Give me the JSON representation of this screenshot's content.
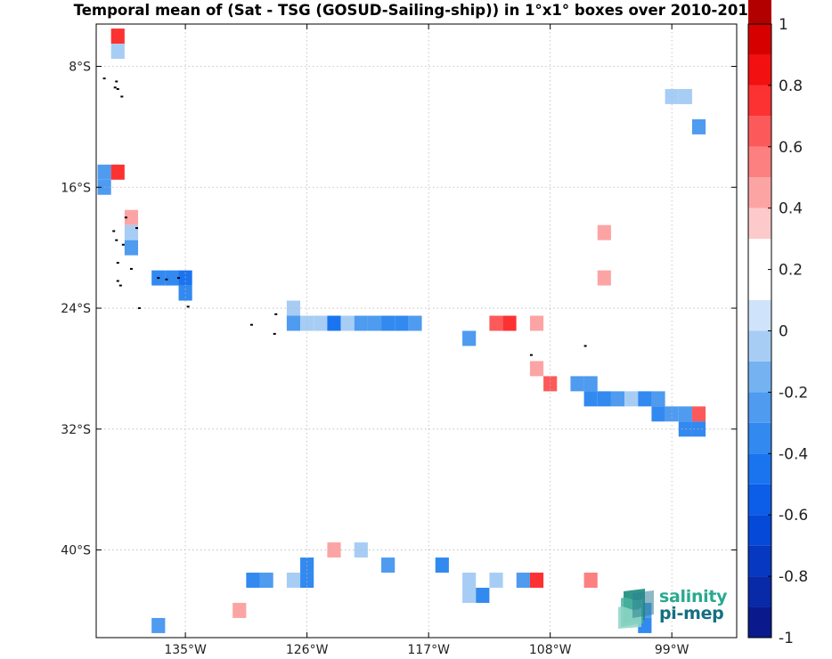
{
  "title": "Temporal mean of (Sat - TSG (GOSUD-Sailing-ship)) in 1°x1° boxes over 2010-2017",
  "logo": {
    "line1": "salinity",
    "line2": "pi-mep"
  },
  "colors": {
    "grid": "#b8b8b8",
    "land": "#000000",
    "axis": "#000000",
    "background": "#ffffff"
  },
  "map_data": {
    "type": "gridded_cell_map",
    "lon_range": [
      -141.6,
      -94.2
    ],
    "lat_range": [
      -45.8,
      -5.2
    ],
    "grid": true,
    "cell_size_deg": 1,
    "x_ticks": [
      {
        "value": -135,
        "label": "135°W"
      },
      {
        "value": -126,
        "label": "126°W"
      },
      {
        "value": -117,
        "label": "117°W"
      },
      {
        "value": -108,
        "label": "108°W"
      },
      {
        "value": -99,
        "label": "99°W"
      }
    ],
    "y_ticks": [
      {
        "value": -8,
        "label": "8°S"
      },
      {
        "value": -16,
        "label": "16°S"
      },
      {
        "value": -24,
        "label": "24°S"
      },
      {
        "value": -32,
        "label": "32°S"
      },
      {
        "value": -40,
        "label": "40°S"
      }
    ],
    "colorbar": {
      "min": -1,
      "max": 1,
      "step": 0.1,
      "orientation": "vertical",
      "position": "right",
      "colors": [
        "#0a1a8c",
        "#0829a8",
        "#0638c2",
        "#0549d8",
        "#0c5ee8",
        "#1a74f0",
        "#3289f0",
        "#4e9bf0",
        "#75b2f2",
        "#a7cdf5",
        "#cfe3fa",
        "#ffffff",
        "#ffffff",
        "#fccaca",
        "#fca4a4",
        "#fc8080",
        "#fc5a5a",
        "#fc3232",
        "#f21010",
        "#d60000",
        "#b20000",
        "#8a0000"
      ],
      "tick_labels": [
        {
          "value": 1,
          "label": "1"
        },
        {
          "value": 0.8,
          "label": "0.8"
        },
        {
          "value": 0.6,
          "label": "0.6"
        },
        {
          "value": 0.4,
          "label": "0.4"
        },
        {
          "value": 0.2,
          "label": "0.2"
        },
        {
          "value": 0,
          "label": "0"
        },
        {
          "value": -0.2,
          "label": "-0.2"
        },
        {
          "value": -0.4,
          "label": "-0.4"
        },
        {
          "value": -0.6,
          "label": "-0.6"
        },
        {
          "value": -0.8,
          "label": "-0.8"
        },
        {
          "value": -1,
          "label": "-1"
        }
      ]
    },
    "cells": [
      {
        "lon": -140,
        "lat": -6,
        "value": 0.55
      },
      {
        "lon": -140,
        "lat": -7,
        "value": -0.12
      },
      {
        "lon": -97,
        "lat": -9,
        "value": 0.15
      },
      {
        "lon": -99,
        "lat": -10,
        "value": -0.12
      },
      {
        "lon": -98,
        "lat": -10,
        "value": -0.12
      },
      {
        "lon": -99,
        "lat": -11,
        "value": 0.15
      },
      {
        "lon": -97,
        "lat": -12,
        "value": -0.3
      },
      {
        "lon": -100,
        "lat": -13,
        "value": 0.15
      },
      {
        "lon": -98,
        "lat": -14,
        "value": 0.15
      },
      {
        "lon": -101,
        "lat": -15,
        "value": 0.15
      },
      {
        "lon": -100,
        "lat": -15,
        "value": 0.15
      },
      {
        "lon": -101,
        "lat": -16,
        "value": 0.15
      },
      {
        "lon": -141,
        "lat": -15,
        "value": -0.35
      },
      {
        "lon": -140,
        "lat": -15,
        "value": 0.55
      },
      {
        "lon": -141,
        "lat": -16,
        "value": -0.3
      },
      {
        "lon": -140,
        "lat": -18,
        "value": 0.15
      },
      {
        "lon": -139,
        "lat": -18,
        "value": 0.35
      },
      {
        "lon": -139,
        "lat": -19,
        "value": -0.12
      },
      {
        "lon": -139,
        "lat": -20,
        "value": -0.3
      },
      {
        "lon": -138,
        "lat": -20,
        "value": 0.15
      },
      {
        "lon": -104,
        "lat": -19,
        "value": 0.3
      },
      {
        "lon": -103,
        "lat": -21,
        "value": 0.15
      },
      {
        "lon": -102,
        "lat": -21,
        "value": 0.15
      },
      {
        "lon": -104,
        "lat": -21,
        "value": 0.15
      },
      {
        "lon": -105,
        "lat": -22,
        "value": 0.15
      },
      {
        "lon": -104,
        "lat": -22,
        "value": 0.3
      },
      {
        "lon": -103,
        "lat": -22,
        "value": 0.15
      },
      {
        "lon": -106,
        "lat": -23,
        "value": 0.15
      },
      {
        "lon": -107,
        "lat": -24,
        "value": 0.15
      },
      {
        "lon": -137,
        "lat": -22,
        "value": -0.45
      },
      {
        "lon": -136,
        "lat": -22,
        "value": -0.4
      },
      {
        "lon": -135,
        "lat": -22,
        "value": -0.5
      },
      {
        "lon": -135,
        "lat": -23,
        "value": -0.4
      },
      {
        "lon": -131,
        "lat": -24,
        "value": 0.15
      },
      {
        "lon": -130,
        "lat": -24,
        "value": 0.15
      },
      {
        "lon": -127,
        "lat": -24,
        "value": -0.12
      },
      {
        "lon": -127,
        "lat": -25,
        "value": -0.35
      },
      {
        "lon": -126,
        "lat": -25,
        "value": -0.12
      },
      {
        "lon": -125,
        "lat": -25,
        "value": -0.12
      },
      {
        "lon": -124,
        "lat": -25,
        "value": -0.5
      },
      {
        "lon": -123,
        "lat": -25,
        "value": -0.12
      },
      {
        "lon": -122,
        "lat": -25,
        "value": -0.3
      },
      {
        "lon": -121,
        "lat": -25,
        "value": -0.35
      },
      {
        "lon": -120,
        "lat": -25,
        "value": -0.45
      },
      {
        "lon": -119,
        "lat": -25,
        "value": -0.45
      },
      {
        "lon": -118,
        "lat": -25,
        "value": -0.3
      },
      {
        "lon": -116,
        "lat": -26,
        "value": 0.15
      },
      {
        "lon": -115,
        "lat": -26,
        "value": 0.15
      },
      {
        "lon": -114,
        "lat": -26,
        "value": -0.3
      },
      {
        "lon": -112,
        "lat": -25,
        "value": 0.5
      },
      {
        "lon": -111,
        "lat": -25,
        "value": 0.55
      },
      {
        "lon": -110,
        "lat": -25,
        "value": 0.15
      },
      {
        "lon": -109,
        "lat": -25,
        "value": 0.3
      },
      {
        "lon": -110,
        "lat": -27,
        "value": 0.15
      },
      {
        "lon": -109,
        "lat": -28,
        "value": 0.3
      },
      {
        "lon": -108,
        "lat": -29,
        "value": 0.5
      },
      {
        "lon": -106,
        "lat": -29,
        "value": -0.3
      },
      {
        "lon": -105,
        "lat": -29,
        "value": -0.3
      },
      {
        "lon": -105,
        "lat": -30,
        "value": -0.45
      },
      {
        "lon": -104,
        "lat": -30,
        "value": -0.4
      },
      {
        "lon": -103,
        "lat": -30,
        "value": -0.3
      },
      {
        "lon": -102,
        "lat": -30,
        "value": -0.12
      },
      {
        "lon": -101,
        "lat": -30,
        "value": -0.4
      },
      {
        "lon": -100,
        "lat": -30,
        "value": -0.35
      },
      {
        "lon": -100,
        "lat": -31,
        "value": -0.4
      },
      {
        "lon": -99,
        "lat": -31,
        "value": -0.3
      },
      {
        "lon": -98,
        "lat": -31,
        "value": -0.3
      },
      {
        "lon": -97,
        "lat": -31,
        "value": 0.5
      },
      {
        "lon": -98,
        "lat": -32,
        "value": -0.4
      },
      {
        "lon": -97,
        "lat": -32,
        "value": -0.4
      },
      {
        "lon": -124,
        "lat": -40,
        "value": 0.3
      },
      {
        "lon": -122,
        "lat": -40,
        "value": -0.12
      },
      {
        "lon": -126,
        "lat": -41,
        "value": -0.4
      },
      {
        "lon": -120,
        "lat": -41,
        "value": -0.3
      },
      {
        "lon": -116,
        "lat": -41,
        "value": -0.45
      },
      {
        "lon": -130,
        "lat": -42,
        "value": -0.4
      },
      {
        "lon": -129,
        "lat": -42,
        "value": -0.3
      },
      {
        "lon": -127,
        "lat": -42,
        "value": -0.12
      },
      {
        "lon": -126,
        "lat": -42,
        "value": -0.4
      },
      {
        "lon": -114,
        "lat": -42,
        "value": -0.12
      },
      {
        "lon": -112,
        "lat": -42,
        "value": -0.12
      },
      {
        "lon": -110,
        "lat": -42,
        "value": -0.35
      },
      {
        "lon": -109,
        "lat": -42,
        "value": 0.55
      },
      {
        "lon": -107,
        "lat": -42,
        "value": 0.15
      },
      {
        "lon": -105,
        "lat": -42,
        "value": 0.45
      },
      {
        "lon": -114,
        "lat": -43,
        "value": -0.12
      },
      {
        "lon": -113,
        "lat": -43,
        "value": -0.4
      },
      {
        "lon": -131,
        "lat": -43,
        "value": 0.15
      },
      {
        "lon": -132,
        "lat": -44,
        "value": 0.15
      },
      {
        "lon": -131,
        "lat": -44,
        "value": 0.3
      },
      {
        "lon": -137,
        "lat": -45,
        "value": -0.3
      },
      {
        "lon": -134,
        "lat": -45,
        "value": 0.15
      },
      {
        "lon": -133,
        "lat": -45,
        "value": 0.15
      },
      {
        "lon": -101,
        "lat": -44,
        "value": -0.35
      },
      {
        "lon": -101,
        "lat": -45,
        "value": -0.4
      }
    ],
    "land_points": [
      {
        "lon": -141.0,
        "lat": -8.8
      },
      {
        "lon": -140.2,
        "lat": -9.4
      },
      {
        "lon": -140.0,
        "lat": -9.5
      },
      {
        "lon": -140.1,
        "lat": -9.0
      },
      {
        "lon": -139.7,
        "lat": -10.0
      },
      {
        "lon": -139.4,
        "lat": -18.0
      },
      {
        "lon": -140.3,
        "lat": -18.9
      },
      {
        "lon": -138.6,
        "lat": -18.7
      },
      {
        "lon": -140.1,
        "lat": -19.5
      },
      {
        "lon": -139.6,
        "lat": -19.8
      },
      {
        "lon": -140.0,
        "lat": -21.0
      },
      {
        "lon": -139.0,
        "lat": -21.4
      },
      {
        "lon": -140.0,
        "lat": -22.2
      },
      {
        "lon": -139.8,
        "lat": -22.5
      },
      {
        "lon": -137.0,
        "lat": -22.0
      },
      {
        "lon": -136.4,
        "lat": -22.1
      },
      {
        "lon": -135.5,
        "lat": -22.0
      },
      {
        "lon": -134.8,
        "lat": -23.9
      },
      {
        "lon": -138.4,
        "lat": -24.0
      },
      {
        "lon": -130.1,
        "lat": -25.1
      },
      {
        "lon": -128.3,
        "lat": -24.4
      },
      {
        "lon": -128.4,
        "lat": -25.7
      },
      {
        "lon": -109.4,
        "lat": -27.1
      },
      {
        "lon": -105.4,
        "lat": -26.5
      }
    ]
  }
}
